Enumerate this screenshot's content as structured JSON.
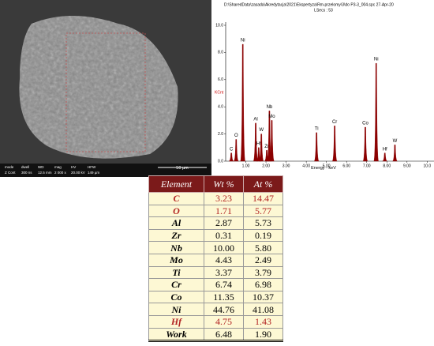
{
  "sem": {
    "info_labels": [
      "mode",
      "dwell",
      "WD",
      "mag",
      "HV",
      "HFW"
    ],
    "info_values": [
      "Z Cont",
      "300 ns",
      "12.5 mm",
      "2 000 x",
      "20.00 kV",
      "149 µm"
    ],
    "scale_bar": "50 µm"
  },
  "chart_data": {
    "type": "spectrum",
    "header": "D:\\SharedData\\zasada\\Akredytacja\\2021\\Ekspertyza\\Rm-przelomy\\3\\do P3-3_004.spc  27-Apr-20",
    "live_time": "LSecs : 53",
    "ylabel": "KCnt",
    "xlabel": "Energy - keV",
    "xlim": [
      0,
      10.3
    ],
    "ylim": [
      0,
      10.0
    ],
    "xticks": [
      {
        "value": 1,
        "label": "1.00"
      },
      {
        "value": 2,
        "label": "2.00"
      },
      {
        "value": 3,
        "label": "3.00"
      },
      {
        "value": 4,
        "label": "4.00"
      },
      {
        "value": 5,
        "label": "5.00"
      },
      {
        "value": 6,
        "label": "6.00"
      },
      {
        "value": 7,
        "label": "7.00"
      },
      {
        "value": 8,
        "label": "8.00"
      },
      {
        "value": 9,
        "label": "9.00"
      },
      {
        "value": 10,
        "label": "10.0"
      }
    ],
    "yticks": [
      {
        "value": 0,
        "label": "0.0"
      },
      {
        "value": 2,
        "label": "2.0"
      },
      {
        "value": 4,
        "label": "4.0"
      },
      {
        "value": 6,
        "label": "6.0"
      },
      {
        "value": 8,
        "label": "8.0"
      },
      {
        "value": 10,
        "label": "10.0"
      }
    ],
    "color": "#8b0000",
    "peaks": [
      {
        "label": "C",
        "x": 0.28,
        "y": 0.6
      },
      {
        "label": "O",
        "x": 0.52,
        "y": 1.6
      },
      {
        "label": "Ni",
        "x": 0.85,
        "y": 8.6
      },
      {
        "label": "Al",
        "x": 1.49,
        "y": 2.8
      },
      {
        "label": "Hf",
        "x": 1.64,
        "y": 1.0
      },
      {
        "label": "W",
        "x": 1.77,
        "y": 2.0
      },
      {
        "label": "Zr",
        "x": 2.04,
        "y": 0.8
      },
      {
        "label": "Nb",
        "x": 2.17,
        "y": 3.7
      },
      {
        "label": "Mo",
        "x": 2.29,
        "y": 3.0
      },
      {
        "label": "Ti",
        "x": 4.51,
        "y": 2.1
      },
      {
        "label": "Cr",
        "x": 5.41,
        "y": 2.6
      },
      {
        "label": "Co",
        "x": 6.93,
        "y": 2.5
      },
      {
        "label": "Ni",
        "x": 7.47,
        "y": 7.2
      },
      {
        "label": "Hf",
        "x": 7.9,
        "y": 0.6
      },
      {
        "label": "W",
        "x": 8.4,
        "y": 1.2
      }
    ]
  },
  "table": {
    "headers": [
      "Element",
      "Wt %",
      "At %"
    ],
    "highlight": [
      0,
      1,
      10
    ],
    "highlight_color": "#b22222",
    "rows": [
      [
        "C",
        "3.23",
        "14.47"
      ],
      [
        "O",
        "1.71",
        "5.77"
      ],
      [
        "Al",
        "2.87",
        "5.73"
      ],
      [
        "Zr",
        "0.31",
        "0.19"
      ],
      [
        "Nb",
        "10.00",
        "5.80"
      ],
      [
        "Mo",
        "4.43",
        "2.49"
      ],
      [
        "Ti",
        "3.37",
        "3.79"
      ],
      [
        "Cr",
        "6.74",
        "6.98"
      ],
      [
        "Co",
        "11.35",
        "10.37"
      ],
      [
        "Ni",
        "44.76",
        "41.08"
      ],
      [
        "Hf",
        "4.75",
        "1.43"
      ],
      [
        "Work",
        "6.48",
        "1.90"
      ]
    ]
  }
}
